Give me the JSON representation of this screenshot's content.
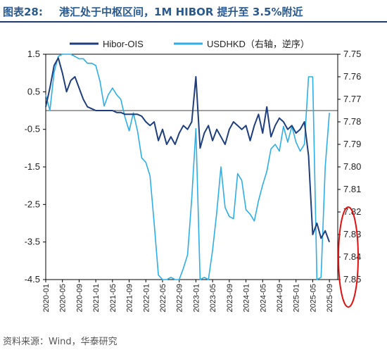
{
  "header": {
    "figure_label": "图表28:",
    "title": "港汇处于中枢区间，1M HIBOR 提升至 3.5%附近"
  },
  "source": "资料来源：Wind，华泰研究",
  "colors": {
    "title": "#2b5a8f",
    "hibor_ois": "#1f3e7d",
    "usdhkd": "#2eaee6",
    "annotation": "#e01010"
  },
  "chart_data": {
    "type": "line",
    "title": "",
    "y_left": {
      "min": -4.5,
      "max": 1.5,
      "ticks": [
        "1.5",
        "0.5",
        "-0.5",
        "-1.5",
        "-2.5",
        "-3.5",
        "-4.5"
      ]
    },
    "y_right": {
      "min": 7.75,
      "max": 7.85,
      "inverted": true,
      "ticks": [
        "7.75",
        "7.76",
        "7.77",
        "7.78",
        "7.79",
        "7.80",
        "7.81",
        "7.82",
        "7.83",
        "7.84",
        "7.85"
      ]
    },
    "x_ticks": [
      "2020-01",
      "2020-05",
      "2020-09",
      "2021-01",
      "2021-05",
      "2021-09",
      "2022-01",
      "2022-05",
      "2022-09",
      "2023-01",
      "2023-05",
      "2023-09",
      "2024-01",
      "2024-05",
      "2024-09",
      "2025-01",
      "2025-05",
      "2025-09"
    ],
    "legend": {
      "position": "top",
      "entries": [
        "Hibor-OIS",
        "USDHKD（右轴，逆序）"
      ]
    },
    "series": [
      {
        "name": "Hibor-OIS",
        "axis": "left",
        "x": [
          "2020-01",
          "2020-02",
          "2020-03",
          "2020-04",
          "2020-05",
          "2020-06",
          "2020-07",
          "2020-08",
          "2020-09",
          "2020-10",
          "2020-11",
          "2020-12",
          "2021-01",
          "2021-02",
          "2021-03",
          "2021-04",
          "2021-05",
          "2021-06",
          "2021-07",
          "2021-08",
          "2021-09",
          "2021-10",
          "2021-11",
          "2021-12",
          "2022-01",
          "2022-02",
          "2022-03",
          "2022-04",
          "2022-05",
          "2022-06",
          "2022-07",
          "2022-08",
          "2022-09",
          "2022-10",
          "2022-11",
          "2022-12",
          "2023-01",
          "2023-02",
          "2023-03",
          "2023-04",
          "2023-05",
          "2023-06",
          "2023-07",
          "2023-08",
          "2023-09",
          "2023-10",
          "2023-11",
          "2023-12",
          "2024-01",
          "2024-02",
          "2024-03",
          "2024-04",
          "2024-05",
          "2024-06",
          "2024-07",
          "2024-08",
          "2024-09",
          "2024-10",
          "2024-11",
          "2024-12",
          "2025-01",
          "2025-02",
          "2025-03",
          "2025-04",
          "2025-05",
          "2025-06",
          "2025-07",
          "2025-08",
          "2025-09"
        ],
        "values": [
          0.1,
          0.6,
          1.2,
          1.4,
          1.0,
          0.5,
          0.8,
          0.9,
          0.6,
          0.3,
          0.1,
          0.05,
          0.0,
          0.0,
          0.0,
          0.0,
          0.0,
          -0.05,
          -0.05,
          -0.1,
          -0.1,
          -0.1,
          -0.1,
          -0.15,
          -0.3,
          -0.4,
          -0.3,
          -0.8,
          -0.5,
          -0.9,
          -0.7,
          -0.9,
          -0.6,
          -0.4,
          -0.5,
          -0.3,
          0.9,
          -1.0,
          -0.6,
          -0.4,
          -0.8,
          -0.5,
          -0.7,
          -0.9,
          -0.5,
          -0.3,
          -0.4,
          -0.5,
          -0.4,
          -0.8,
          -0.4,
          -0.1,
          -0.6,
          0.1,
          -0.7,
          -0.4,
          -0.2,
          -0.3,
          -0.5,
          -0.4,
          -0.6,
          -0.5,
          -0.3,
          -1.2,
          -3.3,
          -3.0,
          -3.4,
          -3.2,
          -3.5
        ]
      },
      {
        "name": "USDHKD（右轴，逆序）",
        "axis": "right",
        "x": [
          "2020-01",
          "2020-02",
          "2020-03",
          "2020-04",
          "2020-05",
          "2020-06",
          "2020-07",
          "2020-08",
          "2020-09",
          "2020-10",
          "2020-11",
          "2020-12",
          "2021-01",
          "2021-02",
          "2021-03",
          "2021-04",
          "2021-05",
          "2021-06",
          "2021-07",
          "2021-08",
          "2021-09",
          "2021-10",
          "2021-11",
          "2021-12",
          "2022-01",
          "2022-02",
          "2022-03",
          "2022-04",
          "2022-05",
          "2022-06",
          "2022-07",
          "2022-08",
          "2022-09",
          "2022-10",
          "2022-11",
          "2022-12",
          "2023-01",
          "2023-02",
          "2023-03",
          "2023-04",
          "2023-05",
          "2023-06",
          "2023-07",
          "2023-08",
          "2023-09",
          "2023-10",
          "2023-11",
          "2023-12",
          "2024-01",
          "2024-02",
          "2024-03",
          "2024-04",
          "2024-05",
          "2024-06",
          "2024-07",
          "2024-08",
          "2024-09",
          "2024-10",
          "2024-11",
          "2024-12",
          "2025-01",
          "2025-02",
          "2025-03",
          "2025-04",
          "2025-05",
          "2025-06",
          "2025-07",
          "2025-08",
          "2025-09"
        ],
        "values": [
          7.768,
          7.775,
          7.758,
          7.751,
          7.75,
          7.75,
          7.75,
          7.751,
          7.752,
          7.752,
          7.754,
          7.754,
          7.755,
          7.762,
          7.773,
          7.768,
          7.765,
          7.768,
          7.77,
          7.778,
          7.784,
          7.776,
          7.784,
          7.796,
          7.798,
          7.804,
          7.825,
          7.848,
          7.85,
          7.85,
          7.849,
          7.85,
          7.85,
          7.845,
          7.839,
          7.814,
          7.783,
          7.85,
          7.849,
          7.85,
          7.837,
          7.82,
          7.8,
          7.818,
          7.822,
          7.823,
          7.803,
          7.806,
          7.819,
          7.821,
          7.824,
          7.815,
          7.808,
          7.802,
          7.792,
          7.79,
          7.793,
          7.782,
          7.789,
          7.782,
          7.789,
          7.793,
          7.79,
          7.76,
          7.76,
          7.85,
          7.849,
          7.8,
          7.776
        ]
      }
    ]
  }
}
